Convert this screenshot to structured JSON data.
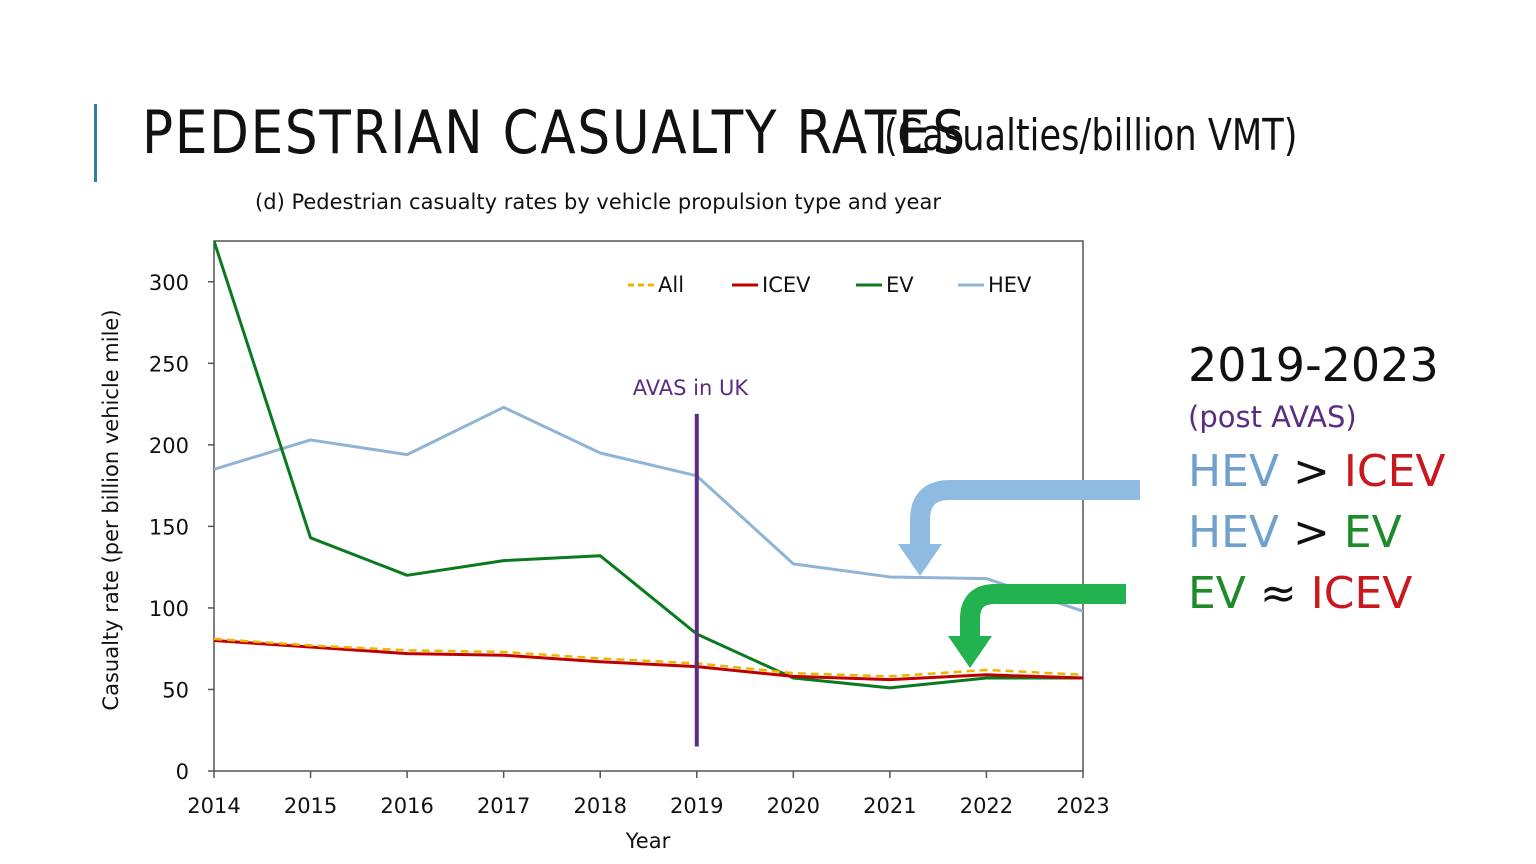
{
  "slide": {
    "title": "PEDESTRIAN CASUALTY RATES",
    "title_unit": "(Casualties/billion VMT)"
  },
  "colors": {
    "accent": "#2e7fa0",
    "all": "#f0b400",
    "icev": "#c00000",
    "ev": "#0a7a1e",
    "hev": "#8fb4d6",
    "avas": "#5b2d82",
    "arrow_blue": "#8fbbe0",
    "arrow_green": "#22b24f"
  },
  "chart_data": {
    "type": "line",
    "title": "(d) Pedestrian casualty rates by vehicle propulsion type and year",
    "xlabel": "Year",
    "ylabel": "Casualty rate (per billion vehicle mile)",
    "x": [
      2014,
      2015,
      2016,
      2017,
      2018,
      2019,
      2020,
      2021,
      2022,
      2023
    ],
    "ylim": [
      0,
      325
    ],
    "yticks": [
      0,
      50,
      100,
      150,
      200,
      250,
      300
    ],
    "legend_position": "top",
    "series": [
      {
        "name": "All",
        "style": "dashed",
        "values": [
          81,
          77,
          74,
          73,
          69,
          66,
          60,
          58,
          62,
          59
        ]
      },
      {
        "name": "ICEV",
        "style": "solid",
        "values": [
          80,
          76,
          72,
          71,
          67,
          64,
          58,
          56,
          59,
          57
        ]
      },
      {
        "name": "EV",
        "style": "solid",
        "values": [
          325,
          143,
          120,
          129,
          132,
          84,
          57,
          51,
          57,
          57
        ]
      },
      {
        "name": "HEV",
        "style": "solid",
        "values": [
          185,
          203,
          194,
          223,
          195,
          181,
          127,
          119,
          118,
          98
        ]
      }
    ],
    "annotations": [
      {
        "text": "AVAS in UK",
        "x": 2019,
        "y_from": 15,
        "y_to": 219
      }
    ]
  },
  "comparison": {
    "period": "2019-2023",
    "note": "(post AVAS)",
    "gt": ">",
    "approx": "≈",
    "line1": {
      "left": "HEV",
      "right": "ICEV"
    },
    "line2": {
      "left": "HEV",
      "right": "EV"
    },
    "line3": {
      "left": "EV",
      "right": "ICEV"
    }
  }
}
